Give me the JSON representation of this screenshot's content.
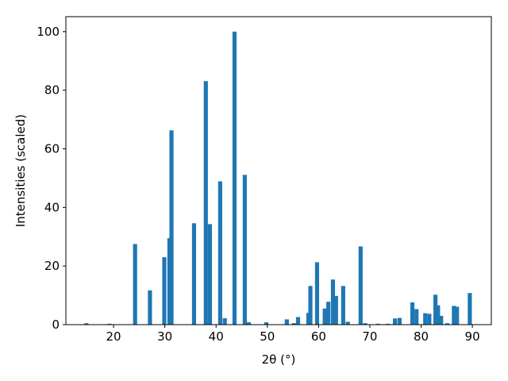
{
  "chart_data": {
    "type": "bar",
    "xlabel": "2θ (°)",
    "ylabel": "Intensities (scaled)",
    "color": "#1f77b4",
    "x": [
      14.7,
      19.2,
      24.2,
      27.1,
      29.9,
      30.9,
      31.3,
      35.7,
      38.0,
      38.8,
      40.8,
      41.7,
      43.6,
      45.6,
      46.4,
      49.8,
      53.8,
      55.2,
      56.0,
      58.0,
      58.4,
      59.7,
      61.2,
      61.9,
      62.8,
      63.4,
      64.8,
      65.7,
      68.2,
      69.1,
      71.6,
      73.5,
      74.9,
      75.8,
      78.3,
      79.1,
      80.8,
      81.6,
      82.8,
      83.3,
      83.9,
      85.1,
      86.4,
      87.0,
      89.5
    ],
    "values": [
      0.5,
      0.3,
      27.5,
      11.7,
      23.0,
      29.5,
      66.3,
      34.6,
      83.1,
      34.3,
      48.9,
      2.2,
      100,
      51.1,
      0.8,
      0.8,
      1.8,
      0.5,
      2.6,
      4.0,
      13.2,
      21.3,
      5.5,
      7.8,
      15.4,
      9.8,
      13.2,
      1.0,
      26.7,
      0.5,
      0.3,
      0.3,
      2.1,
      2.3,
      7.6,
      5.3,
      3.9,
      3.7,
      10.2,
      6.6,
      3.0,
      0.5,
      6.4,
      6.1,
      10.8
    ],
    "xlim": [
      10.7,
      93.7
    ],
    "ylim": [
      0,
      105.1
    ],
    "xticks": [
      20,
      30,
      40,
      50,
      60,
      70,
      80,
      90
    ],
    "yticks": [
      0,
      20,
      40,
      60,
      80,
      100
    ]
  }
}
